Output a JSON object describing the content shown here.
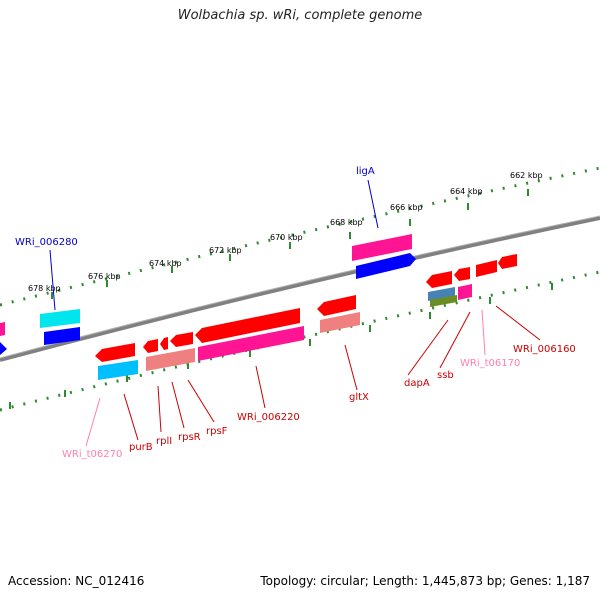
{
  "header": {
    "title": "Wolbachia sp. wRi, complete genome"
  },
  "footer": {
    "accession": "Accession: NC_012416",
    "summary": "Topology: circular; Length: 1,445,873 bp; Genes: 1,187"
  },
  "colors": {
    "backbone": "#808080",
    "tick": "#2e8b2e",
    "cds": "#ff0000",
    "trna": "#ff69b4",
    "hypothetical": "#ff1493",
    "rrna": "#f08080",
    "misc": "#00bfff",
    "gene_blue": "#0000ff",
    "olive": "#6b8e23",
    "label_blue": "#0000cc",
    "label_red": "#cc0000",
    "label_pink": "#ff80b0"
  },
  "scale_labels": [
    "678 kbp",
    "676 kbp",
    "674 kbp",
    "672 kbp",
    "670 kbp",
    "668 kbp",
    "666 kbp",
    "664 kbp",
    "662 kbp"
  ],
  "feature_labels": {
    "WRi_006280": "WRi_006280",
    "ligA": "ligA",
    "WRi_t06270": "WRi_t06270",
    "purB": "purB",
    "rplI": "rplI",
    "rpsR": "rpsR",
    "rpsF": "rpsF",
    "WRi_006220": "WRi_006220",
    "gltX": "gltX",
    "dapA": "dapA",
    "ssb": "ssb",
    "WRi_t06170": "WRi_t06170",
    "WRi_006160": "WRi_006160"
  }
}
